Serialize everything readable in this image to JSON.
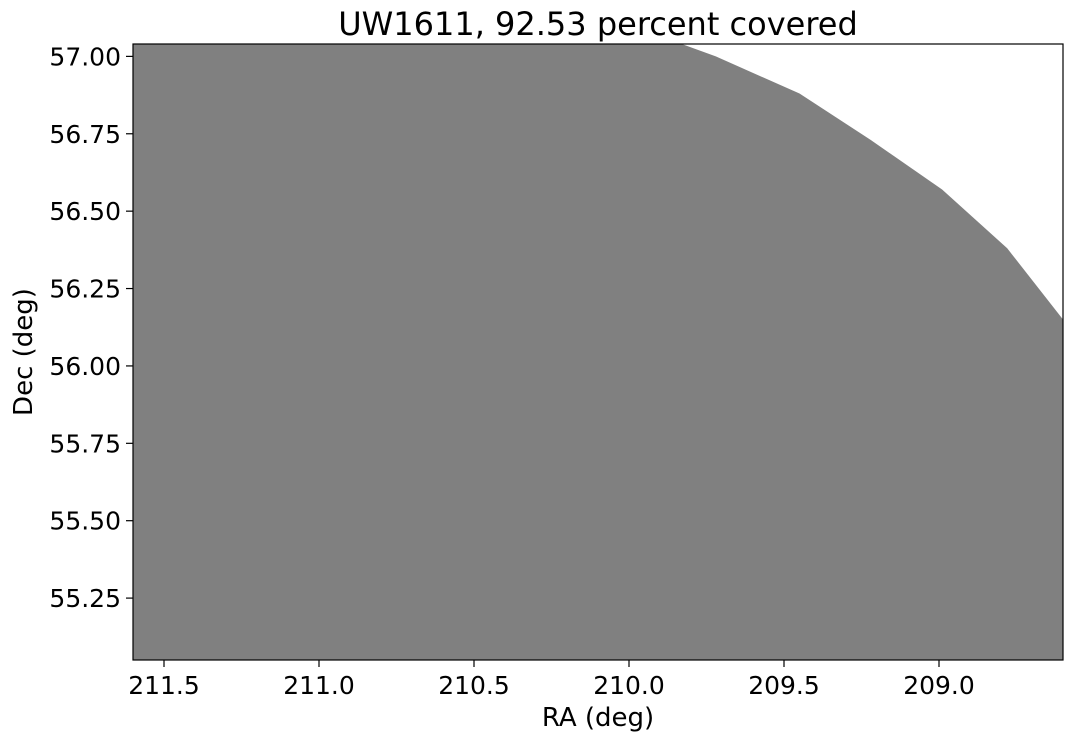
{
  "chart_data": {
    "type": "area",
    "title": "UW1611, 92.53 percent covered",
    "xlabel": "RA (deg)",
    "ylabel": "Dec (deg)",
    "xlim": [
      211.6,
      208.6
    ],
    "ylim": [
      55.05,
      57.04
    ],
    "x_reversed": true,
    "xticks": [
      211.5,
      211.0,
      210.5,
      210.0,
      209.5,
      209.0
    ],
    "xtick_labels": [
      "211.5",
      "211.0",
      "210.5",
      "210.0",
      "209.5",
      "209.0"
    ],
    "yticks": [
      55.25,
      55.5,
      55.75,
      56.0,
      56.25,
      56.5,
      56.75,
      57.0
    ],
    "ytick_labels": [
      "55.25",
      "55.50",
      "55.75",
      "56.00",
      "56.25",
      "56.50",
      "56.75",
      "57.00"
    ],
    "grid": false,
    "legend": "none",
    "coverage_color": "#808080",
    "coverage_boundary": [
      {
        "ra": 209.83,
        "dec": 57.04
      },
      {
        "ra": 209.72,
        "dec": 57.0
      },
      {
        "ra": 209.45,
        "dec": 56.88
      },
      {
        "ra": 209.22,
        "dec": 56.73
      },
      {
        "ra": 208.99,
        "dec": 56.57
      },
      {
        "ra": 208.78,
        "dec": 56.38
      },
      {
        "ra": 208.6,
        "dec": 56.15
      }
    ]
  }
}
